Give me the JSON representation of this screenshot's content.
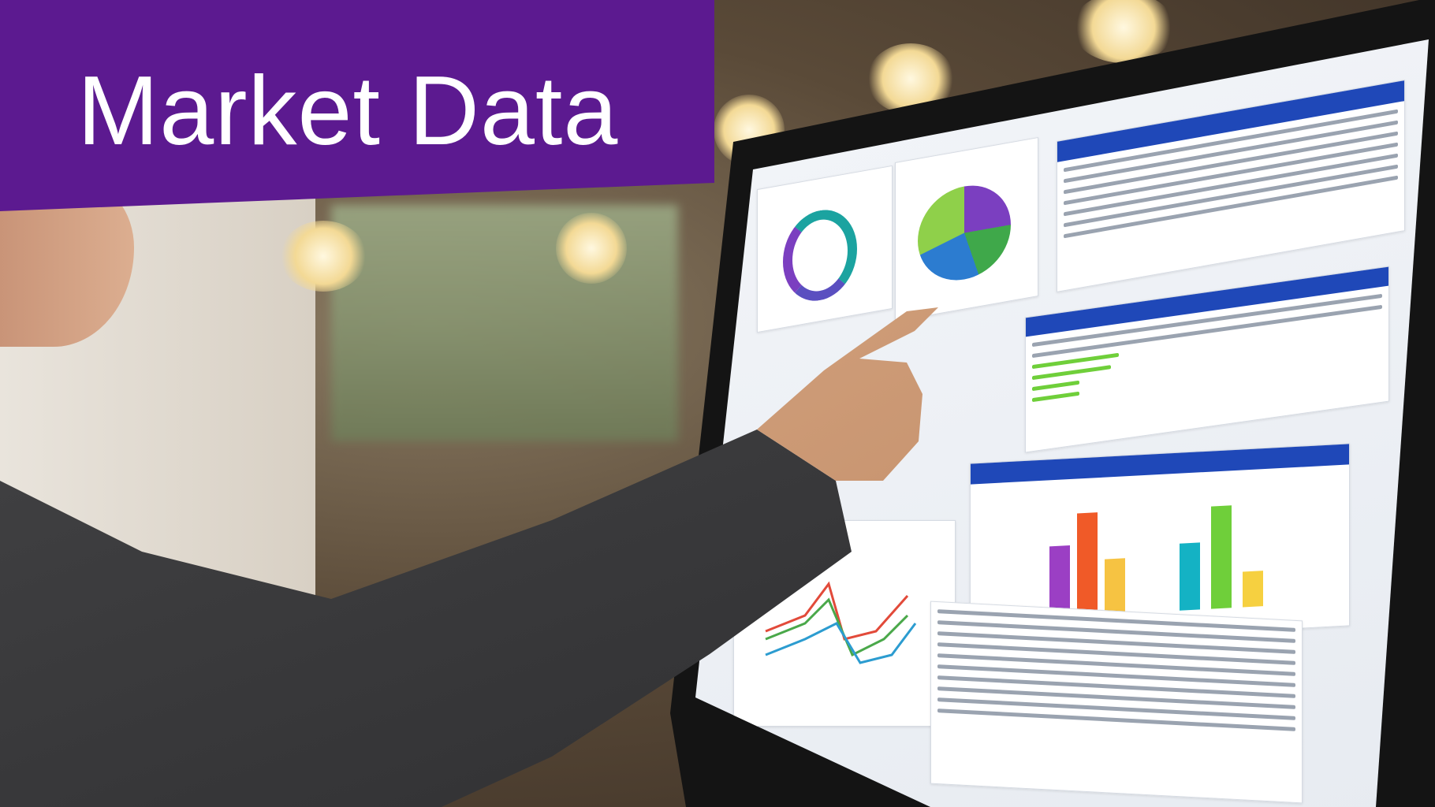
{
  "banner": {
    "title": "Market Data",
    "color": "#5c1a90"
  },
  "screen": {
    "accent_color": "#1f48b8",
    "bar_colors": [
      "#9b3fc4",
      "#f05a28",
      "#f6c342",
      "#14b2c4",
      "#6fcf3a",
      "#f6d040"
    ],
    "pie_colors": [
      "#7b3fc0",
      "#3fa84a",
      "#2c7cd0",
      "#8fd04a"
    ]
  }
}
